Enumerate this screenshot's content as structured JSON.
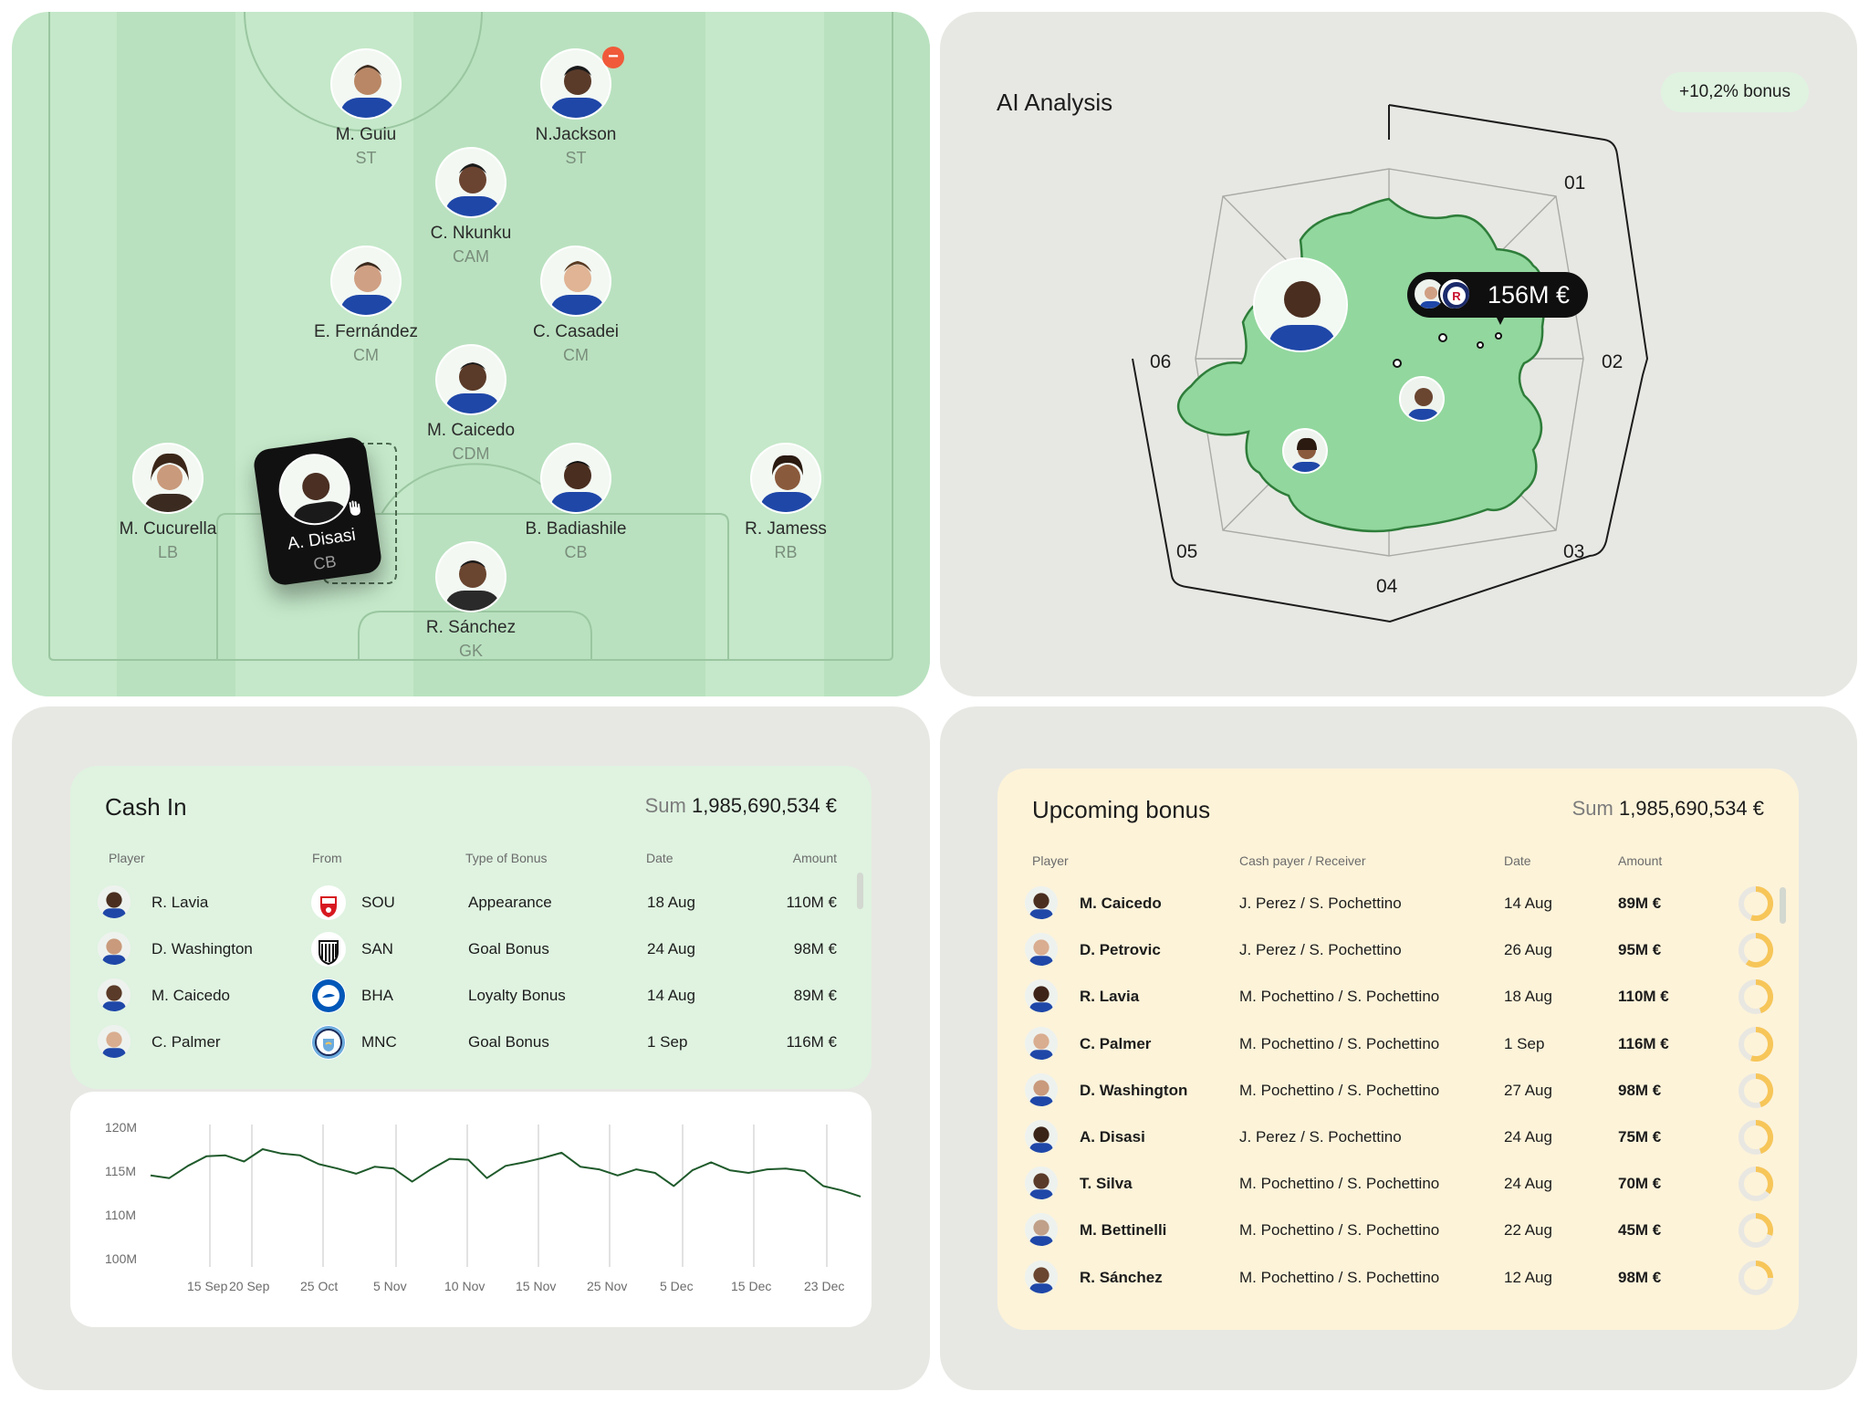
{
  "pitch": {
    "players": [
      {
        "name": "M. Guiu",
        "pos": "ST"
      },
      {
        "name": "N.Jackson",
        "pos": "ST"
      },
      {
        "name": "C. Nkunku",
        "pos": "CAM"
      },
      {
        "name": "E. Fernández",
        "pos": "CM"
      },
      {
        "name": "C. Casadei",
        "pos": "CM"
      },
      {
        "name": "M. Caicedo",
        "pos": "CDM"
      },
      {
        "name": "M. Cucurella",
        "pos": "LB"
      },
      {
        "name": "A. Disasi",
        "pos": "CB"
      },
      {
        "name": "B. Badiashile",
        "pos": "CB"
      },
      {
        "name": "R. Jamess",
        "pos": "RB"
      },
      {
        "name": "R. Sánchez",
        "pos": "GK"
      }
    ],
    "remove_icon": "−"
  },
  "ai": {
    "title": "AI Analysis",
    "bonus_chip": "+10,2% bonus",
    "axis_labels": [
      "01",
      "02",
      "03",
      "04",
      "05",
      "06"
    ],
    "value_tip": "156M €",
    "colors": {
      "area_fill": "#92d79e",
      "area_stroke": "#2e7d3a",
      "tip_bg": "#0f0f0f"
    }
  },
  "cash_in": {
    "title": "Cash In",
    "sum_label": "Sum",
    "sum_value": "1,985,690,534 €",
    "headers": {
      "player": "Player",
      "from": "From",
      "type": "Type of Bonus",
      "date": "Date",
      "amount": "Amount"
    },
    "rows": [
      {
        "player": "R. Lavia",
        "from": "SOU",
        "club_icon": "southampton-crest-icon",
        "type": "Appearance",
        "date": "18 Aug",
        "amount": "110M €"
      },
      {
        "player": "D. Washington",
        "from": "SAN",
        "club_icon": "santos-crest-icon",
        "type": "Goal Bonus",
        "date": "24 Aug",
        "amount": "98M €"
      },
      {
        "player": "M. Caicedo",
        "from": "BHA",
        "club_icon": "brighton-crest-icon",
        "type": "Loyalty Bonus",
        "date": "14 Aug",
        "amount": "89M €"
      },
      {
        "player": "C. Palmer",
        "from": "MNC",
        "club_icon": "man-city-crest-icon",
        "type": "Goal Bonus",
        "date": "1 Sep",
        "amount": "116M €"
      }
    ]
  },
  "chart_data": {
    "type": "line",
    "title": "",
    "xlabel": "",
    "ylabel": "",
    "y_ticks": [
      "120M",
      "115M",
      "110M",
      "100M"
    ],
    "x_ticks": [
      "15 Sep",
      "20 Sep",
      "25 Oct",
      "5 Nov",
      "10 Nov",
      "15 Nov",
      "25 Nov",
      "5 Dec",
      "15 Dec",
      "23 Dec"
    ],
    "series": [
      {
        "name": "",
        "values": [
          114.6,
          114.3,
          115.7,
          116.8,
          116.9,
          116.2,
          117.6,
          117.1,
          116.9,
          115.9,
          115.4,
          114.8,
          115.6,
          115.4,
          113.9,
          115.3,
          116.5,
          116.4,
          114.3,
          115.7,
          116.1,
          116.6,
          117.2,
          115.6,
          115.3,
          114.6,
          115.3,
          114.9,
          113.4,
          115.2,
          116.1,
          115.2,
          114.9,
          115.3,
          115.4,
          115.1,
          113.4,
          112.9,
          112.2
        ]
      }
    ],
    "ylim": [
      100,
      120
    ],
    "line_color": "#1f5a2b"
  },
  "upcoming": {
    "title": "Upcoming bonus",
    "sum_label": "Sum",
    "sum_value": "1,985,690,534 €",
    "headers": {
      "player": "Player",
      "payer": "Cash payer / Receiver",
      "date": "Date",
      "amount": "Amount"
    },
    "rows": [
      {
        "player": "M. Caicedo",
        "payer": "J. Perez / S. Pochettino",
        "date": "14 Aug",
        "amount": "89M €",
        "progress": 0.55
      },
      {
        "player": "D. Petrovic",
        "payer": "J. Perez / S. Pochettino",
        "date": "26 Aug",
        "amount": "95M €",
        "progress": 0.6
      },
      {
        "player": "R. Lavia",
        "payer": "M. Pochettino / S. Pochettino",
        "date": "18 Aug",
        "amount": "110M €",
        "progress": 0.45
      },
      {
        "player": "C. Palmer",
        "payer": "M. Pochettino / S. Pochettino",
        "date": "1 Sep",
        "amount": "116M €",
        "progress": 0.55
      },
      {
        "player": "D. Washington",
        "payer": "M. Pochettino / S. Pochettino",
        "date": "27 Aug",
        "amount": "98M €",
        "progress": 0.45
      },
      {
        "player": "A. Disasi",
        "payer": "J. Perez / S. Pochettino",
        "date": "24 Aug",
        "amount": "75M €",
        "progress": 0.45
      },
      {
        "player": "T. Silva",
        "payer": "M. Pochettino / S. Pochettino",
        "date": "24 Aug",
        "amount": "70M €",
        "progress": 0.35
      },
      {
        "player": "M. Bettinelli",
        "payer": "M. Pochettino / S. Pochettino",
        "date": "22 Aug",
        "amount": "45M €",
        "progress": 0.3
      },
      {
        "player": "R. Sánchez",
        "payer": "M. Pochettino / S. Pochettino",
        "date": "12 Aug",
        "amount": "98M €",
        "progress": 0.25
      }
    ],
    "colors": {
      "donut_fill": "#f7c659",
      "donut_track": "#e9e7e1"
    }
  }
}
